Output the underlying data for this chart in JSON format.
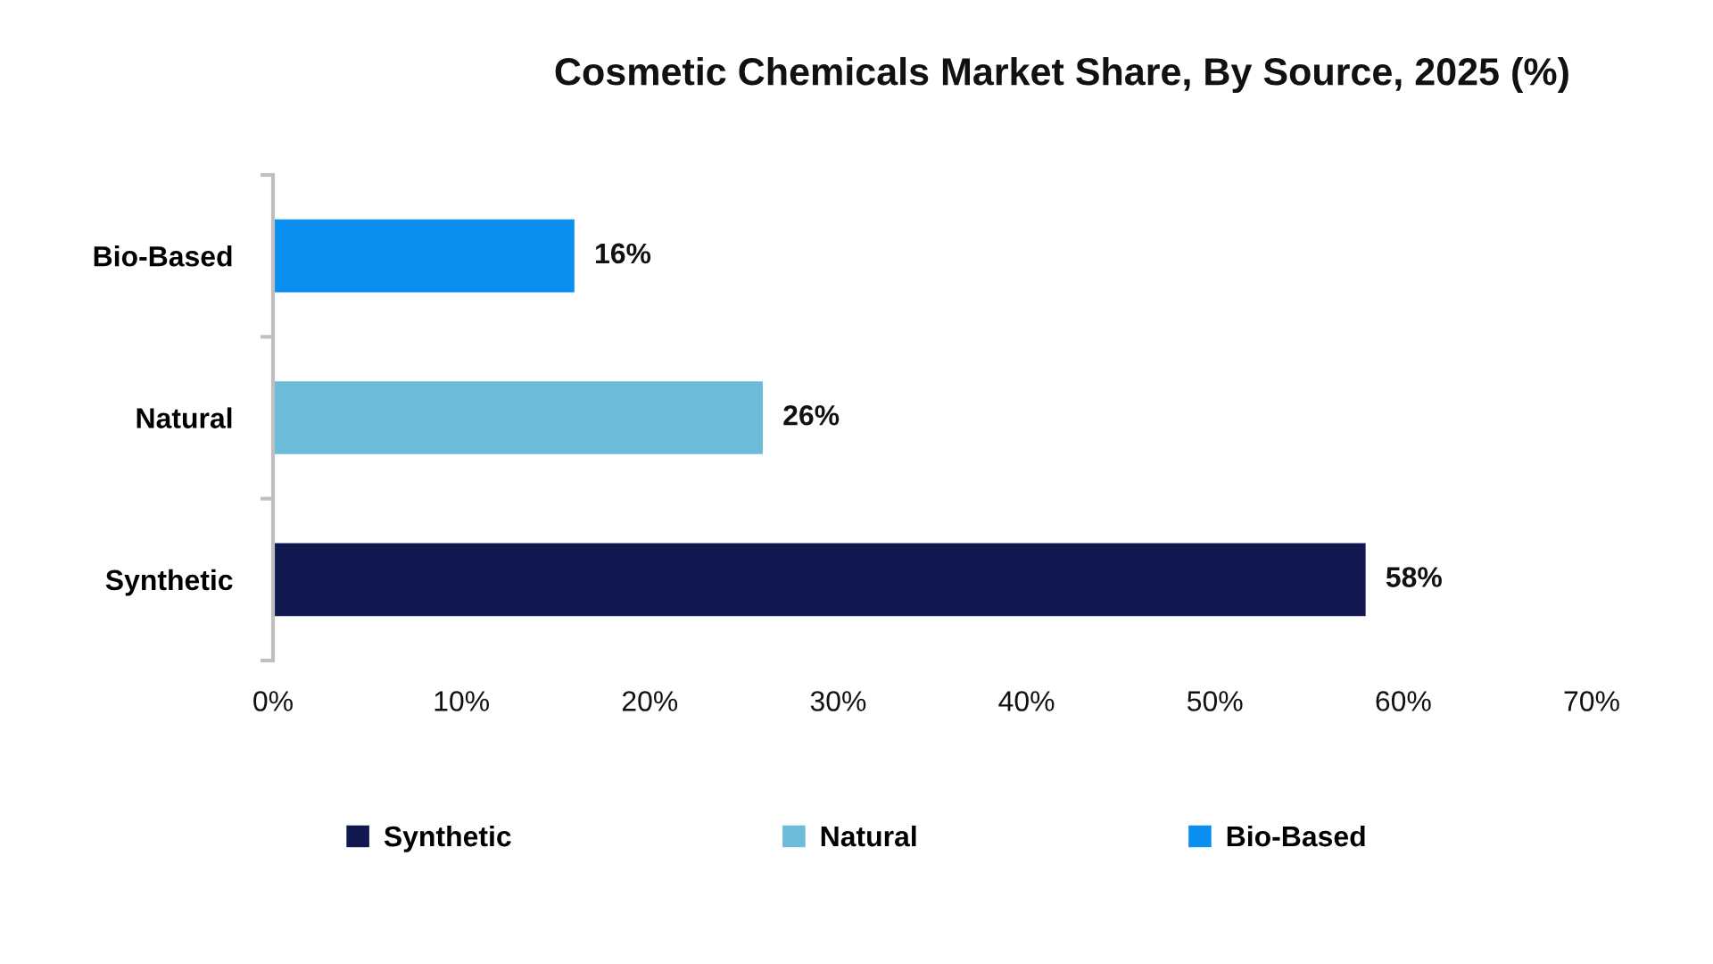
{
  "chart_data": {
    "type": "bar",
    "orientation": "horizontal",
    "stacked": true,
    "title": "Cosmetic Chemicals Market Share, By Source, 2025 (%)",
    "categories": [
      "Bio-Based",
      "Natural",
      "Synthetic"
    ],
    "series": [
      {
        "name": "Synthetic",
        "color": "#10184f",
        "values": [
          null,
          null,
          58
        ],
        "value_labels": [
          null,
          null,
          "58%"
        ]
      },
      {
        "name": "Natural",
        "color": "#6bbbd9",
        "values": [
          null,
          26,
          null
        ],
        "value_labels": [
          null,
          "26%",
          null
        ]
      },
      {
        "name": "Bio-Based",
        "color": "#0a8ff0",
        "values": [
          16,
          null,
          null
        ],
        "value_labels": [
          "16%",
          null,
          null
        ]
      }
    ],
    "xlim": [
      0,
      70
    ],
    "xticks": [
      {
        "value": 0,
        "label": "0%"
      },
      {
        "value": 10,
        "label": "10%"
      },
      {
        "value": 20,
        "label": "20%"
      },
      {
        "value": 30,
        "label": "30%"
      },
      {
        "value": 40,
        "label": "40%"
      },
      {
        "value": 50,
        "label": "50%"
      },
      {
        "value": 60,
        "label": "60%"
      },
      {
        "value": 70,
        "label": "70%"
      }
    ],
    "grid": false,
    "legend": "bottom"
  }
}
